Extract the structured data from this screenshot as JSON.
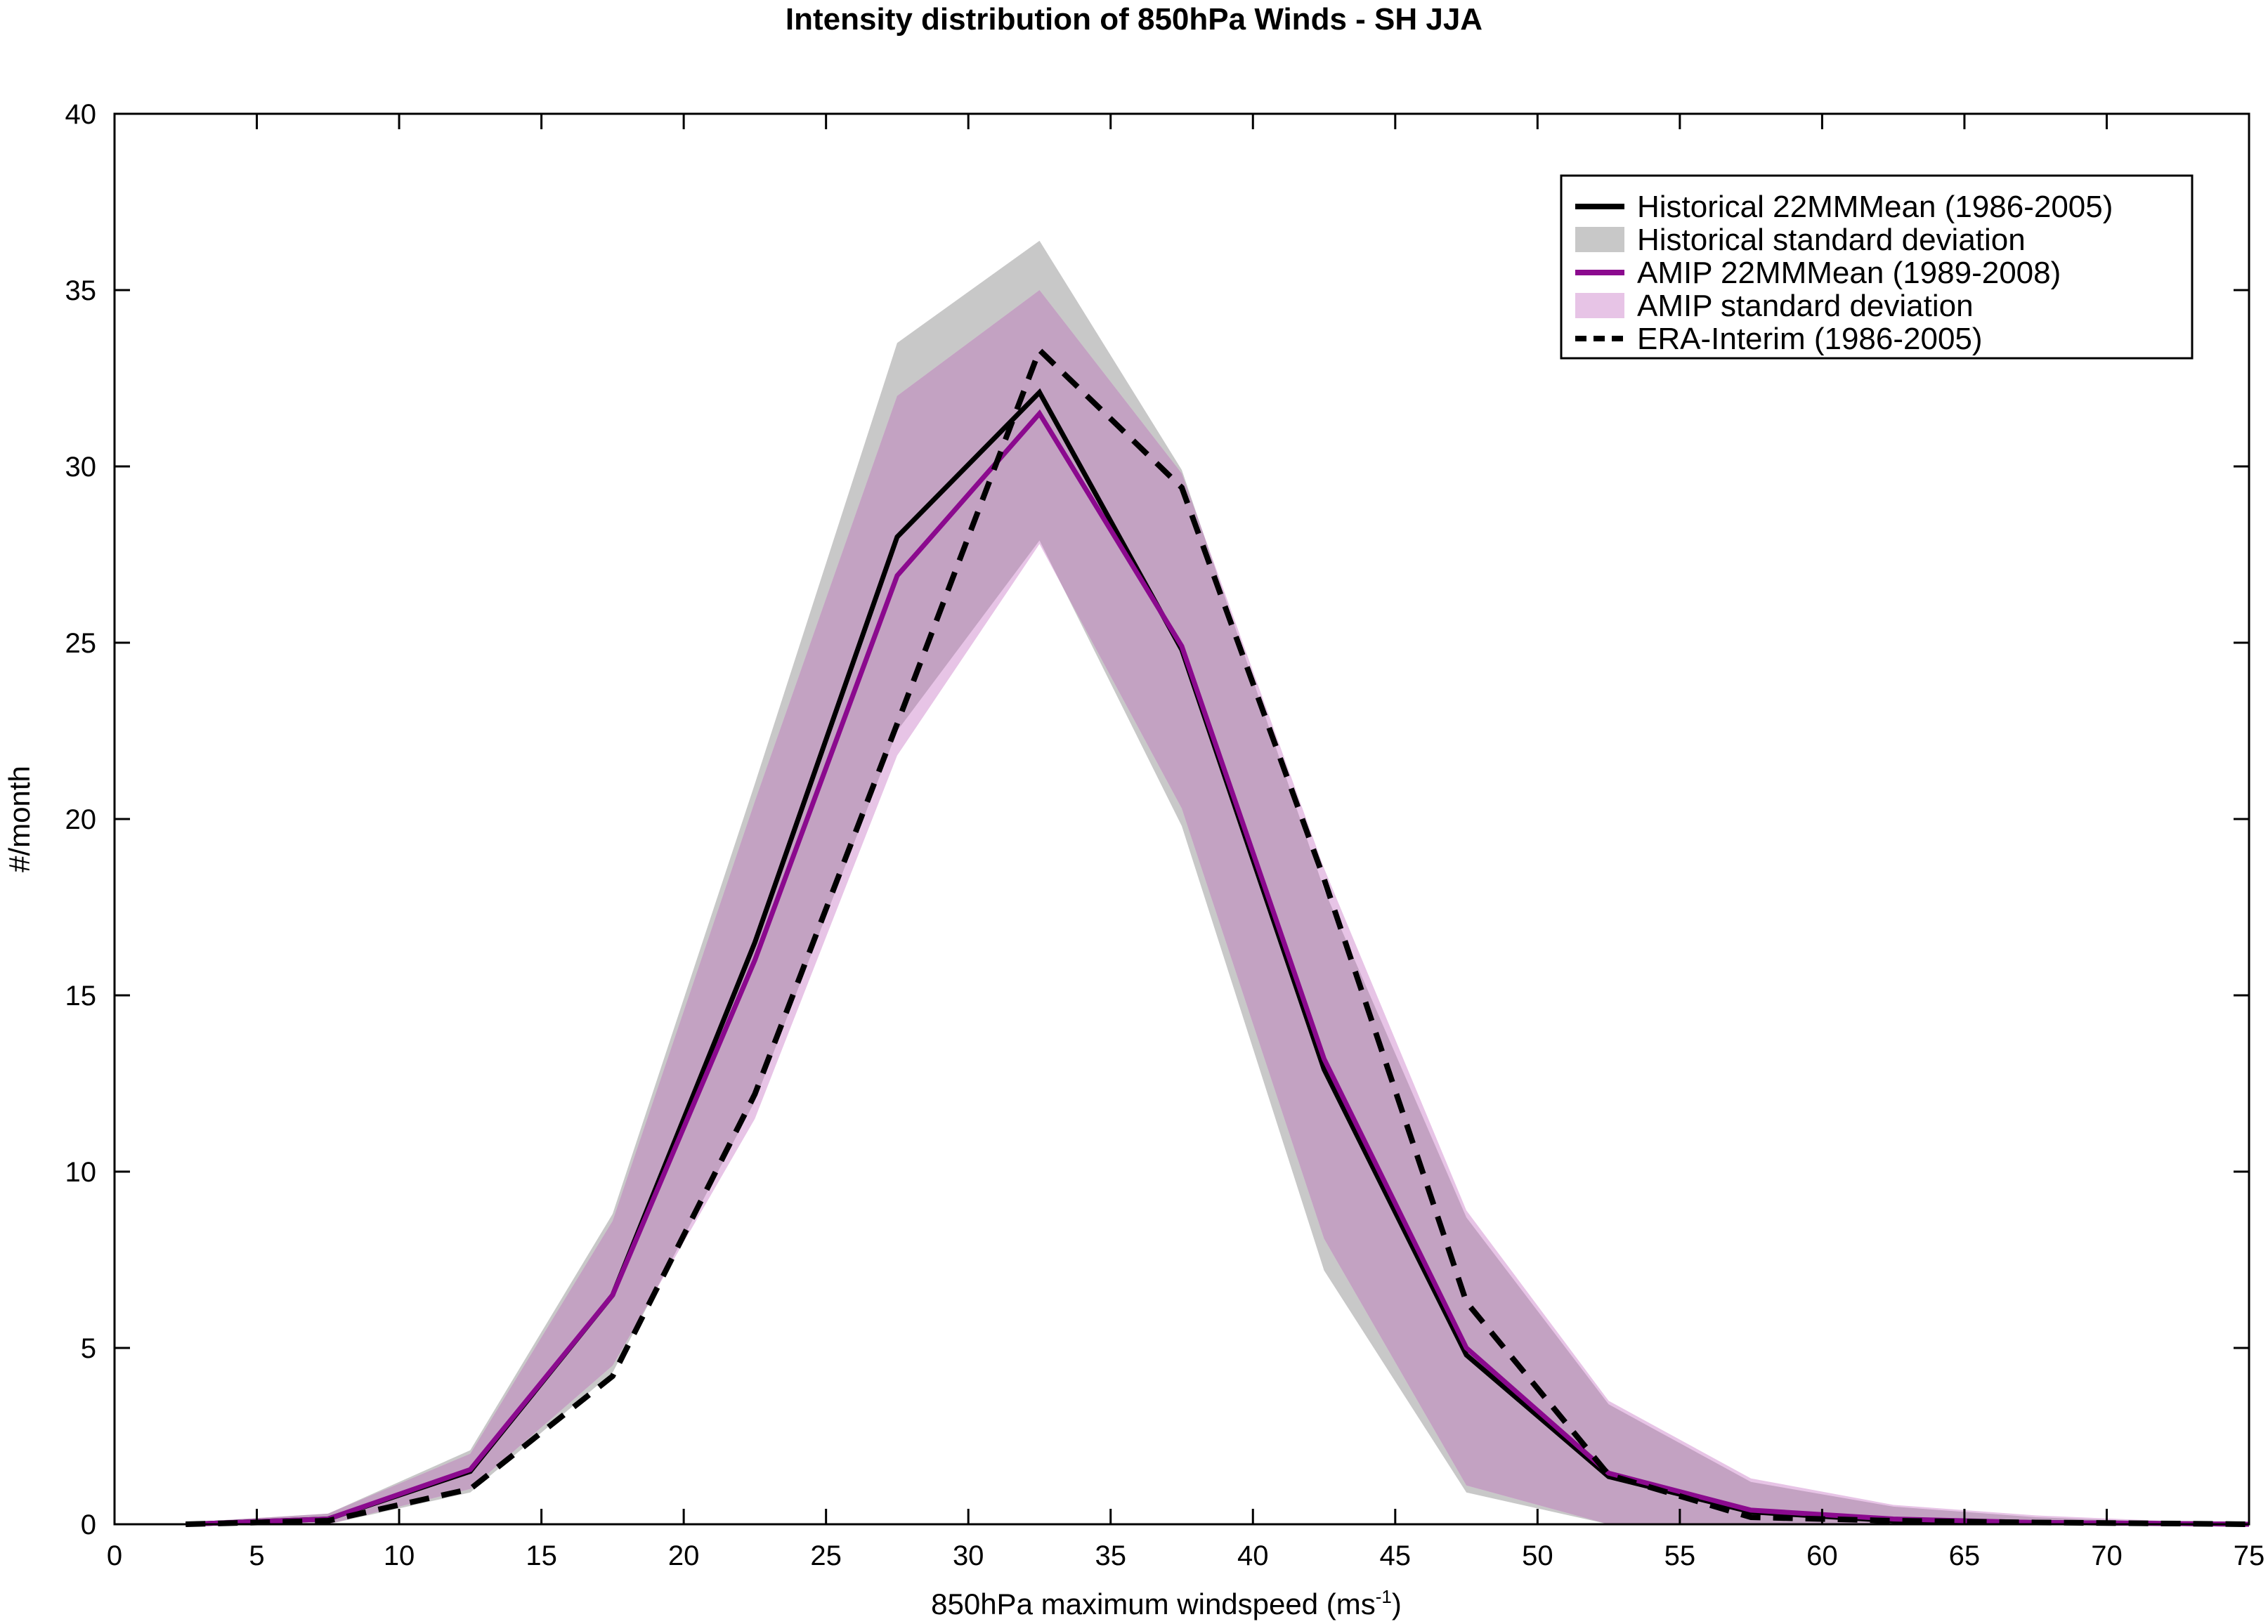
{
  "chart_data": {
    "type": "line",
    "title": "Intensity distribution of 850hPa Winds - SH JJA",
    "xlabel": "850hPa maximum windspeed (ms",
    "xlabel_sup": "-1",
    "xlabel_close": ")",
    "ylabel": "#/month",
    "xlim": [
      0,
      75
    ],
    "ylim": [
      0,
      40
    ],
    "xticks": [
      0,
      5,
      10,
      15,
      20,
      25,
      30,
      35,
      40,
      45,
      50,
      55,
      60,
      65,
      70,
      75
    ],
    "yticks": [
      0,
      5,
      10,
      15,
      20,
      25,
      30,
      35,
      40
    ],
    "grid": false,
    "legend_position": "top-right",
    "x": [
      2.5,
      7.5,
      12.5,
      17.5,
      22.5,
      27.5,
      32.5,
      37.5,
      42.5,
      47.5,
      52.5,
      57.5,
      62.5,
      67.5,
      72.5,
      75
    ],
    "series": [
      {
        "name": "Historical 22MMMean (1986-2005)",
        "style": "solid",
        "color": "#000000",
        "values": [
          0.0,
          0.15,
          1.5,
          6.5,
          16.5,
          28.0,
          32.1,
          24.8,
          12.9,
          4.8,
          1.35,
          0.35,
          0.1,
          0.05,
          0.02,
          0.0
        ]
      },
      {
        "name": "Historical standard deviation",
        "type": "band",
        "color": "#c8c8c8",
        "upper": [
          0.05,
          0.3,
          2.1,
          8.8,
          21.0,
          33.5,
          36.4,
          29.9,
          18.0,
          8.7,
          3.4,
          1.2,
          0.5,
          0.2,
          0.05,
          0.0
        ],
        "lower": [
          0.0,
          0.0,
          0.9,
          4.3,
          12.0,
          22.5,
          27.9,
          19.8,
          7.2,
          0.9,
          0.0,
          0.0,
          0.0,
          0.0,
          0.0,
          0.0
        ]
      },
      {
        "name": "AMIP 22MMMean (1989-2008)",
        "style": "solid",
        "color": "#8b0a8e",
        "values": [
          0.0,
          0.15,
          1.55,
          6.5,
          16.0,
          26.9,
          31.5,
          24.9,
          13.2,
          5.0,
          1.45,
          0.4,
          0.15,
          0.05,
          0.02,
          0.0
        ]
      },
      {
        "name": "AMIP standard deviation",
        "type": "band",
        "color": "#e7c4e6",
        "upper": [
          0.05,
          0.3,
          2.0,
          8.6,
          20.5,
          32.0,
          35.0,
          29.8,
          18.6,
          8.9,
          3.5,
          1.3,
          0.55,
          0.25,
          0.08,
          0.0
        ],
        "lower": [
          0.0,
          0.0,
          1.0,
          4.5,
          11.5,
          21.8,
          27.8,
          20.3,
          8.1,
          1.1,
          0.0,
          0.0,
          0.0,
          0.0,
          0.0,
          0.0
        ]
      },
      {
        "name": "ERA-Interim (1986-2005)",
        "style": "dashed",
        "color": "#000000",
        "values": [
          0.0,
          0.1,
          1.0,
          4.2,
          12.2,
          22.7,
          33.3,
          29.4,
          18.3,
          6.3,
          1.4,
          0.2,
          0.1,
          0.05,
          0.02,
          0.0
        ]
      }
    ],
    "overlap_color": "#c3a2c2"
  }
}
